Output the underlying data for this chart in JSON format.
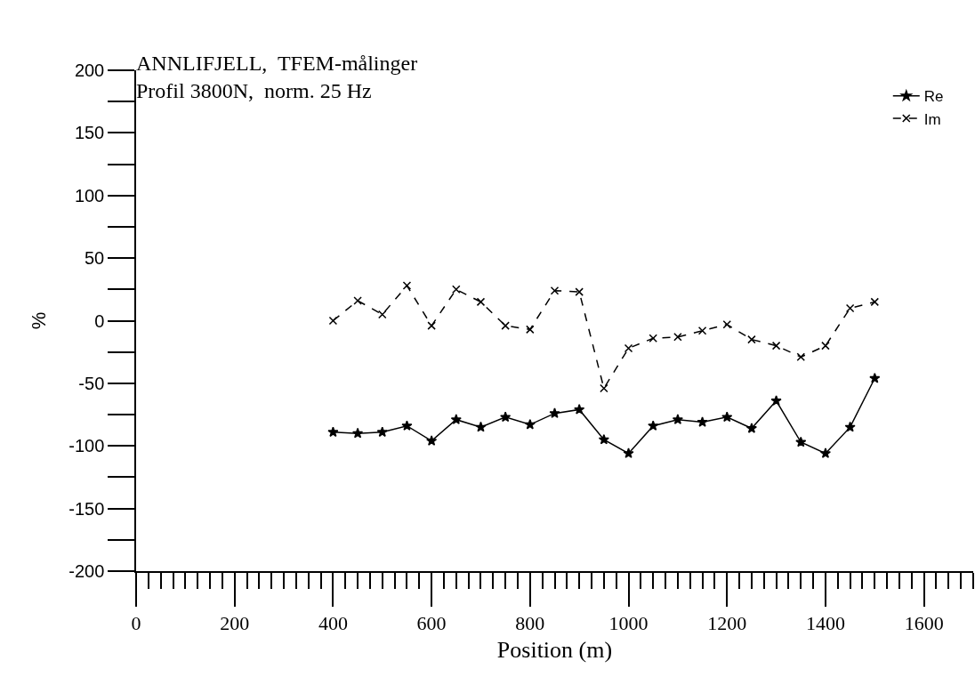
{
  "chart_data": {
    "type": "line",
    "title": "ANNLIFJELL,  TFEM-målinger",
    "subtitle": "Profil 3800N,  norm. 25 Hz",
    "xlabel": "Position (m)",
    "ylabel": "%",
    "x": [
      400,
      450,
      500,
      550,
      600,
      650,
      700,
      750,
      800,
      850,
      900,
      950,
      1000,
      1050,
      1100,
      1150,
      1200,
      1250,
      1300,
      1350,
      1400,
      1450,
      1500
    ],
    "series": [
      {
        "name": "Re",
        "color": "#000000",
        "marker": "star",
        "line_style": "solid",
        "values": [
          -89,
          -90,
          -89,
          -84,
          -96,
          -79,
          -85,
          -77,
          -83,
          -74,
          -71,
          -95,
          -106,
          -84,
          -79,
          -81,
          -77,
          -86,
          -64,
          -97,
          -106,
          -85,
          -46
        ]
      },
      {
        "name": "Im",
        "color": "#000000",
        "marker": "cross",
        "line_style": "dashed",
        "values": [
          0,
          16,
          5,
          28,
          -4,
          25,
          15,
          -4,
          -7,
          24,
          23,
          -54,
          -22,
          -14,
          -13,
          -8,
          -3,
          -15,
          -20,
          -29,
          -20,
          10,
          15
        ]
      }
    ],
    "xlim": [
      0,
      1700
    ],
    "xticks": [
      0,
      200,
      400,
      600,
      800,
      1000,
      1200,
      1400,
      1600
    ],
    "ylim": [
      -200,
      200
    ],
    "yticks": [
      -200,
      -150,
      -100,
      -50,
      0,
      50,
      100,
      150,
      200
    ],
    "grid": false,
    "legend": "top right"
  }
}
